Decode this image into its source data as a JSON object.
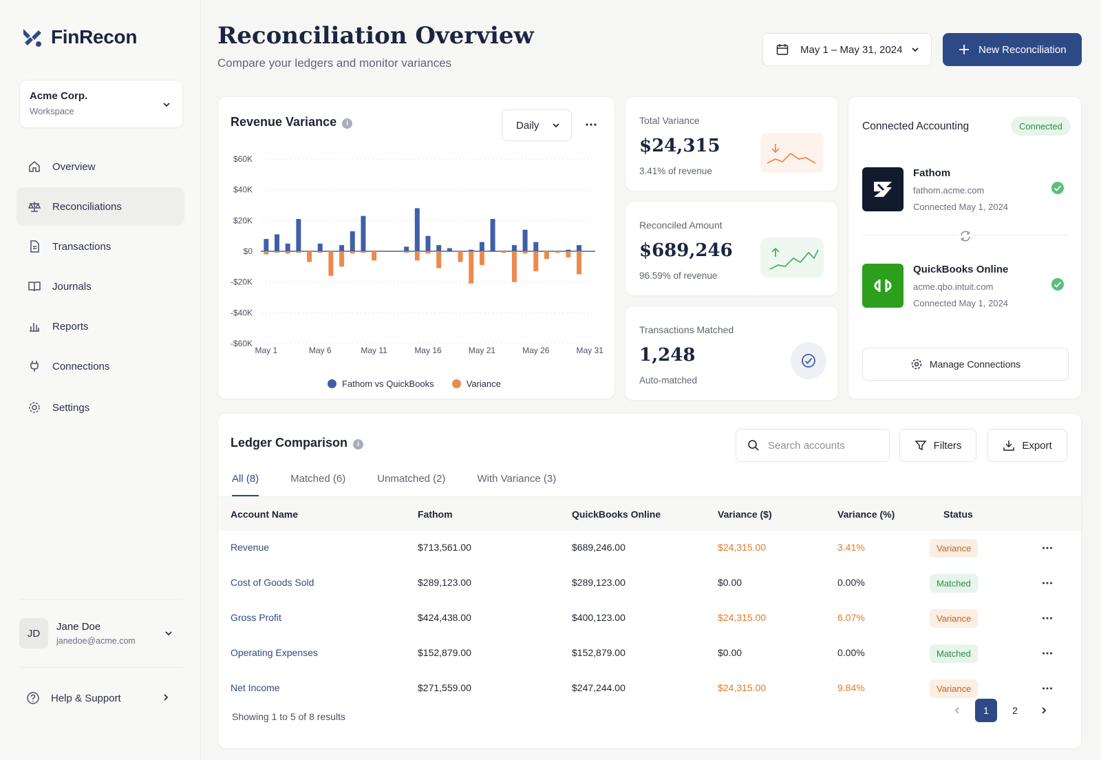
{
  "app": {
    "name": "FinRecon"
  },
  "workspace": {
    "name": "Acme Corp.",
    "label": "Workspace"
  },
  "nav": [
    {
      "label": "Overview",
      "icon": "home-icon"
    },
    {
      "label": "Reconciliations",
      "icon": "scale-icon",
      "active": true
    },
    {
      "label": "Transactions",
      "icon": "document-icon"
    },
    {
      "label": "Journals",
      "icon": "book-icon"
    },
    {
      "label": "Reports",
      "icon": "bar-chart-icon"
    },
    {
      "label": "Connections",
      "icon": "plug-icon"
    },
    {
      "label": "Settings",
      "icon": "gear-icon"
    }
  ],
  "user": {
    "initials": "JD",
    "name": "Jane Doe",
    "email": "janedoe@acme.com"
  },
  "help": {
    "label": "Help & Support"
  },
  "header": {
    "title": "Reconciliation Overview",
    "subtitle": "Compare your ledgers and monitor variances",
    "date_range": "May 1 – May 31, 2024",
    "new_button": "New Reconciliation"
  },
  "revenue_chart": {
    "title": "Revenue Variance",
    "period": "Daily",
    "legend": [
      "Fathom vs QuickBooks",
      "Variance"
    ]
  },
  "chart_data": {
    "type": "bar",
    "categories": [
      "May 1",
      "May 2",
      "May 3",
      "May 4",
      "May 5",
      "May 6",
      "May 7",
      "May 8",
      "May 9",
      "May 10",
      "May 11",
      "May 12",
      "May 13",
      "May 14",
      "May 15",
      "May 16",
      "May 17",
      "May 18",
      "May 19",
      "May 20",
      "May 21",
      "May 22",
      "May 23",
      "May 24",
      "May 25",
      "May 26",
      "May 27",
      "May 28",
      "May 29",
      "May 30",
      "May 31"
    ],
    "x_tick_labels": [
      "May 1",
      "May 6",
      "May 11",
      "May 16",
      "May 21",
      "May 26",
      "May 31"
    ],
    "y_tick_labels": [
      "$60K",
      "$40K",
      "$20K",
      "$0",
      "-$20K",
      "-$40K",
      "-$60K"
    ],
    "ylim": [
      -60000,
      60000
    ],
    "grid": true,
    "legend_position": "bottom",
    "series": [
      {
        "name": "Fathom vs QuickBooks",
        "color": "#3f5fa8",
        "values": [
          8000,
          11000,
          5000,
          21000,
          0,
          5000,
          0,
          4000,
          13000,
          23000,
          0,
          0,
          0,
          3000,
          28000,
          10000,
          4000,
          2000,
          0,
          1000,
          6000,
          21000,
          0,
          4000,
          14000,
          6000,
          0,
          0,
          1000,
          4000,
          0
        ]
      },
      {
        "name": "Variance",
        "color": "#ec8a4d",
        "values": [
          -2000,
          -1000,
          -1500,
          -1000,
          -7000,
          -1000,
          -16000,
          -10000,
          -1500,
          -1000,
          -6000,
          0,
          0,
          -1000,
          -6000,
          -1500,
          -11000,
          0,
          -7000,
          -21000,
          -9000,
          0,
          -1000,
          -20000,
          -1500,
          -13000,
          -5000,
          -1000,
          -4000,
          -15000,
          0
        ]
      }
    ]
  },
  "stats": [
    {
      "label": "Total Variance",
      "value": "$24,315",
      "sub": "3.41% of revenue",
      "trend": "down",
      "color": "#ec8a4d"
    },
    {
      "label": "Reconciled Amount",
      "value": "$689,246",
      "sub": "96.59% of revenue",
      "trend": "up",
      "color": "#4caf6a"
    },
    {
      "label": "Transactions Matched",
      "value": "1,248",
      "sub": "Auto-matched",
      "trend": "check",
      "color": "#3f5fa8"
    }
  ],
  "connections": {
    "title": "Connected Accounting",
    "badge": "Connected",
    "items": [
      {
        "name": "Fathom",
        "url": "fathom.acme.com",
        "date": "Connected May 1, 2024",
        "color": "#121a2e"
      },
      {
        "name": "QuickBooks Online",
        "url": "acme.qbo.intuit.com",
        "date": "Connected May 1, 2024",
        "color": "#2ca01c"
      }
    ],
    "manage": "Manage Connections"
  },
  "ledger": {
    "title": "Ledger Comparison",
    "search_placeholder": "Search accounts",
    "filters": "Filters",
    "export": "Export",
    "tabs": [
      "All (8)",
      "Matched (6)",
      "Unmatched (2)",
      "With Variance (3)"
    ],
    "columns": [
      "Account Name",
      "Fathom",
      "QuickBooks Online",
      "Variance ($)",
      "Variance (%)",
      "Status"
    ],
    "rows": [
      {
        "account": "Revenue",
        "fathom": "$713,561.00",
        "qbo": "$689,246.00",
        "var": "$24,315.00",
        "pct": "3.41%",
        "status": "Variance"
      },
      {
        "account": "Cost of Goods Sold",
        "fathom": "$289,123.00",
        "qbo": "$289,123.00",
        "var": "$0.00",
        "pct": "0.00%",
        "status": "Matched"
      },
      {
        "account": "Gross Profit",
        "fathom": "$424,438.00",
        "qbo": "$400,123.00",
        "var": "$24,315.00",
        "pct": "6.07%",
        "status": "Variance"
      },
      {
        "account": "Operating Expenses",
        "fathom": "$152,879.00",
        "qbo": "$152,879.00",
        "var": "$0.00",
        "pct": "0.00%",
        "status": "Matched"
      },
      {
        "account": "Net Income",
        "fathom": "$271,559.00",
        "qbo": "$247,244.00",
        "var": "$24,315.00",
        "pct": "9.84%",
        "status": "Variance"
      }
    ],
    "showing": "Showing 1 to 5 of 8 results",
    "pages": [
      "1",
      "2"
    ]
  }
}
